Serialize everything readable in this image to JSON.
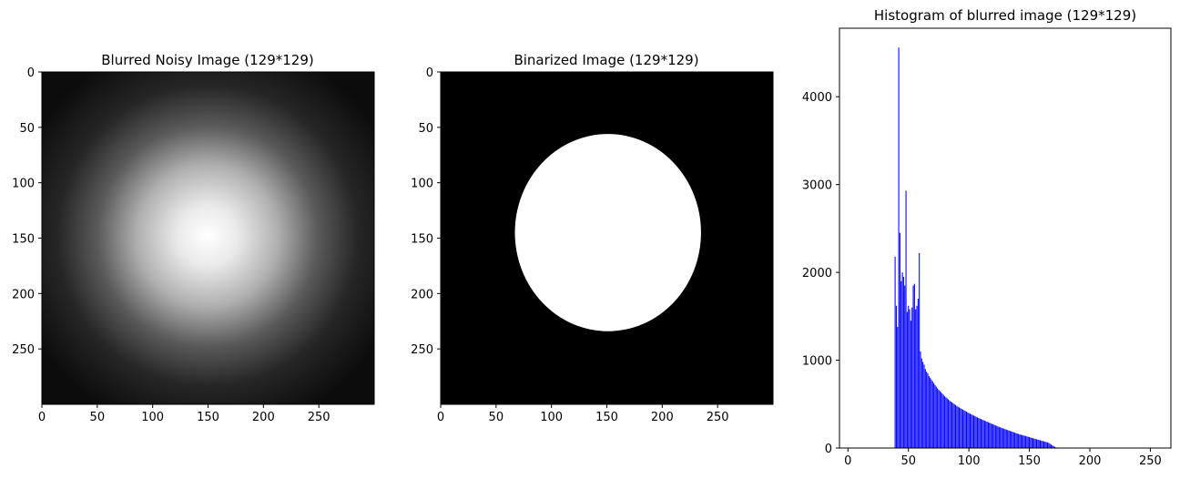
{
  "chart_data": [
    {
      "type": "image",
      "title": "Blurred Noisy Image (129*129)",
      "image": {
        "kind": "gaussian-blob",
        "background_level": 0.05,
        "peak_level": 1.0,
        "center": [
          150,
          150
        ],
        "sigma": 55
      },
      "xlim": [
        0,
        300
      ],
      "ylim": [
        300,
        0
      ],
      "xticks": [
        "0",
        "50",
        "100",
        "150",
        "200",
        "250"
      ],
      "yticks": [
        "0",
        "50",
        "100",
        "150",
        "200",
        "250"
      ],
      "colormap": "gray"
    },
    {
      "type": "image",
      "title": "Binarized Image (129*129)",
      "image": {
        "kind": "binary-ellipse",
        "background_color": "#000000",
        "foreground_color": "#ffffff",
        "center": [
          151,
          145
        ],
        "rx": 84,
        "ry": 89
      },
      "xlim": [
        0,
        300
      ],
      "ylim": [
        300,
        0
      ],
      "xticks": [
        "0",
        "50",
        "100",
        "150",
        "200",
        "250"
      ],
      "yticks": [
        "0",
        "50",
        "100",
        "150",
        "200",
        "250"
      ],
      "colormap": "gray"
    },
    {
      "type": "bar",
      "title": "Histogram of blurred image (129*129)",
      "color": "#0000ff",
      "xlim": [
        -7,
        267
      ],
      "ylim": [
        0,
        4780
      ],
      "xticks": [
        "0",
        "50",
        "100",
        "150",
        "200",
        "250"
      ],
      "yticks": [
        "0",
        "1000",
        "2000",
        "3000",
        "4000"
      ],
      "bins": [
        39,
        40,
        41,
        42,
        43,
        44,
        45,
        46,
        47,
        48,
        49,
        50,
        51,
        52,
        53,
        54,
        55,
        56,
        57,
        58,
        59,
        60,
        61,
        62,
        63,
        64,
        65,
        66,
        67,
        68,
        69,
        70,
        71,
        72,
        73,
        74,
        75,
        76,
        77,
        78,
        79,
        80,
        81,
        82,
        83,
        84,
        85,
        86,
        87,
        88,
        89,
        90,
        91,
        92,
        93,
        94,
        95,
        96,
        97,
        98,
        99,
        100,
        101,
        102,
        103,
        104,
        105,
        106,
        107,
        108,
        109,
        110,
        111,
        112,
        113,
        114,
        115,
        116,
        117,
        118,
        119,
        120,
        121,
        122,
        123,
        124,
        125,
        126,
        127,
        128,
        129,
        130,
        131,
        132,
        133,
        134,
        135,
        136,
        137,
        138,
        139,
        140,
        141,
        142,
        143,
        144,
        145,
        146,
        147,
        148,
        149,
        150,
        151,
        152,
        153,
        154,
        155,
        156,
        157,
        158,
        159,
        160,
        161,
        162,
        163,
        164,
        165,
        166,
        167,
        168,
        169,
        170,
        171,
        172,
        173,
        174,
        175,
        176,
        177,
        178,
        179
      ],
      "counts": [
        2180,
        1620,
        1380,
        4560,
        2450,
        1900,
        2000,
        1950,
        1850,
        2930,
        1550,
        1620,
        1580,
        1450,
        1600,
        1850,
        1870,
        1580,
        1620,
        1700,
        2220,
        1100,
        1020,
        980,
        950,
        900,
        870,
        850,
        820,
        800,
        780,
        760,
        740,
        720,
        700,
        680,
        665,
        650,
        635,
        620,
        605,
        590,
        578,
        566,
        554,
        542,
        530,
        520,
        510,
        500,
        490,
        480,
        470,
        462,
        454,
        446,
        438,
        430,
        422,
        414,
        406,
        398,
        391,
        384,
        377,
        370,
        363,
        356,
        349,
        342,
        336,
        330,
        324,
        318,
        312,
        306,
        300,
        294,
        288,
        282,
        276,
        270,
        264,
        258,
        252,
        246,
        240,
        235,
        230,
        225,
        220,
        215,
        210,
        205,
        200,
        195,
        190,
        185,
        180,
        175,
        170,
        165,
        160,
        156,
        152,
        148,
        144,
        140,
        136,
        132,
        128,
        124,
        120,
        116,
        112,
        108,
        104,
        100,
        96,
        92,
        88,
        84,
        80,
        76,
        72,
        68,
        64,
        58,
        50,
        40,
        30,
        22,
        14,
        8,
        4,
        2,
        1,
        0,
        0,
        0,
        0
      ]
    }
  ]
}
